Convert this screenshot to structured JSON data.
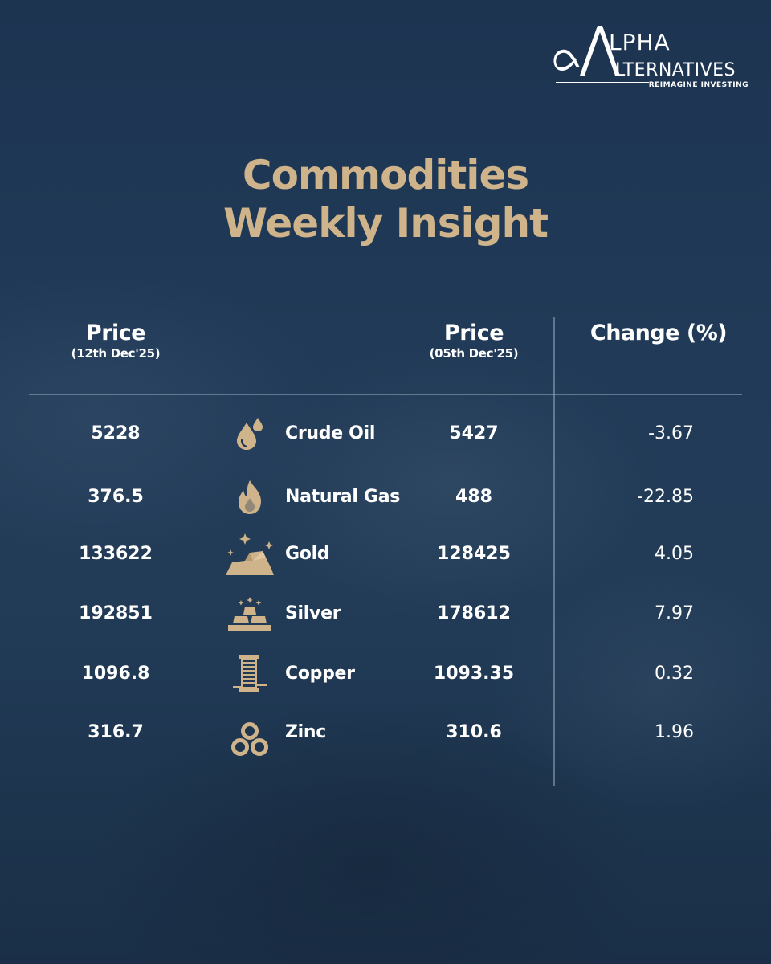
{
  "brand": {
    "logo_top": "LPHA",
    "logo_bottom": "LTERNATIVES",
    "tagline": "REIMAGINE INVESTING",
    "accent": "#cfb38a"
  },
  "title": {
    "line1": "Commodities",
    "line2": "Weekly Insight"
  },
  "columns": {
    "current": {
      "label": "Price",
      "date": "(12th Dec'25)"
    },
    "previous": {
      "label": "Price",
      "date": "(05th Dec'25)"
    },
    "change": {
      "label": "Change (%)"
    }
  },
  "rows": [
    {
      "current": "5228",
      "icon": "oil-drops-icon",
      "name": "Crude Oil",
      "previous": "5427",
      "change": "-3.67"
    },
    {
      "current": "376.5",
      "icon": "flame-icon",
      "name": "Natural Gas",
      "previous": "488",
      "change": "-22.85"
    },
    {
      "current": "133622",
      "icon": "gold-bars-sparkle-icon",
      "name": "Gold",
      "previous": "128425",
      "change": "4.05"
    },
    {
      "current": "192851",
      "icon": "silver-bars-icon",
      "name": "Silver",
      "previous": "178612",
      "change": "7.97"
    },
    {
      "current": "1096.8",
      "icon": "copper-coil-icon",
      "name": "Copper",
      "previous": "1093.35",
      "change": "0.32"
    },
    {
      "current": "316.7",
      "icon": "zinc-rings-icon",
      "name": "Zinc",
      "previous": "310.6",
      "change": "1.96"
    }
  ]
}
